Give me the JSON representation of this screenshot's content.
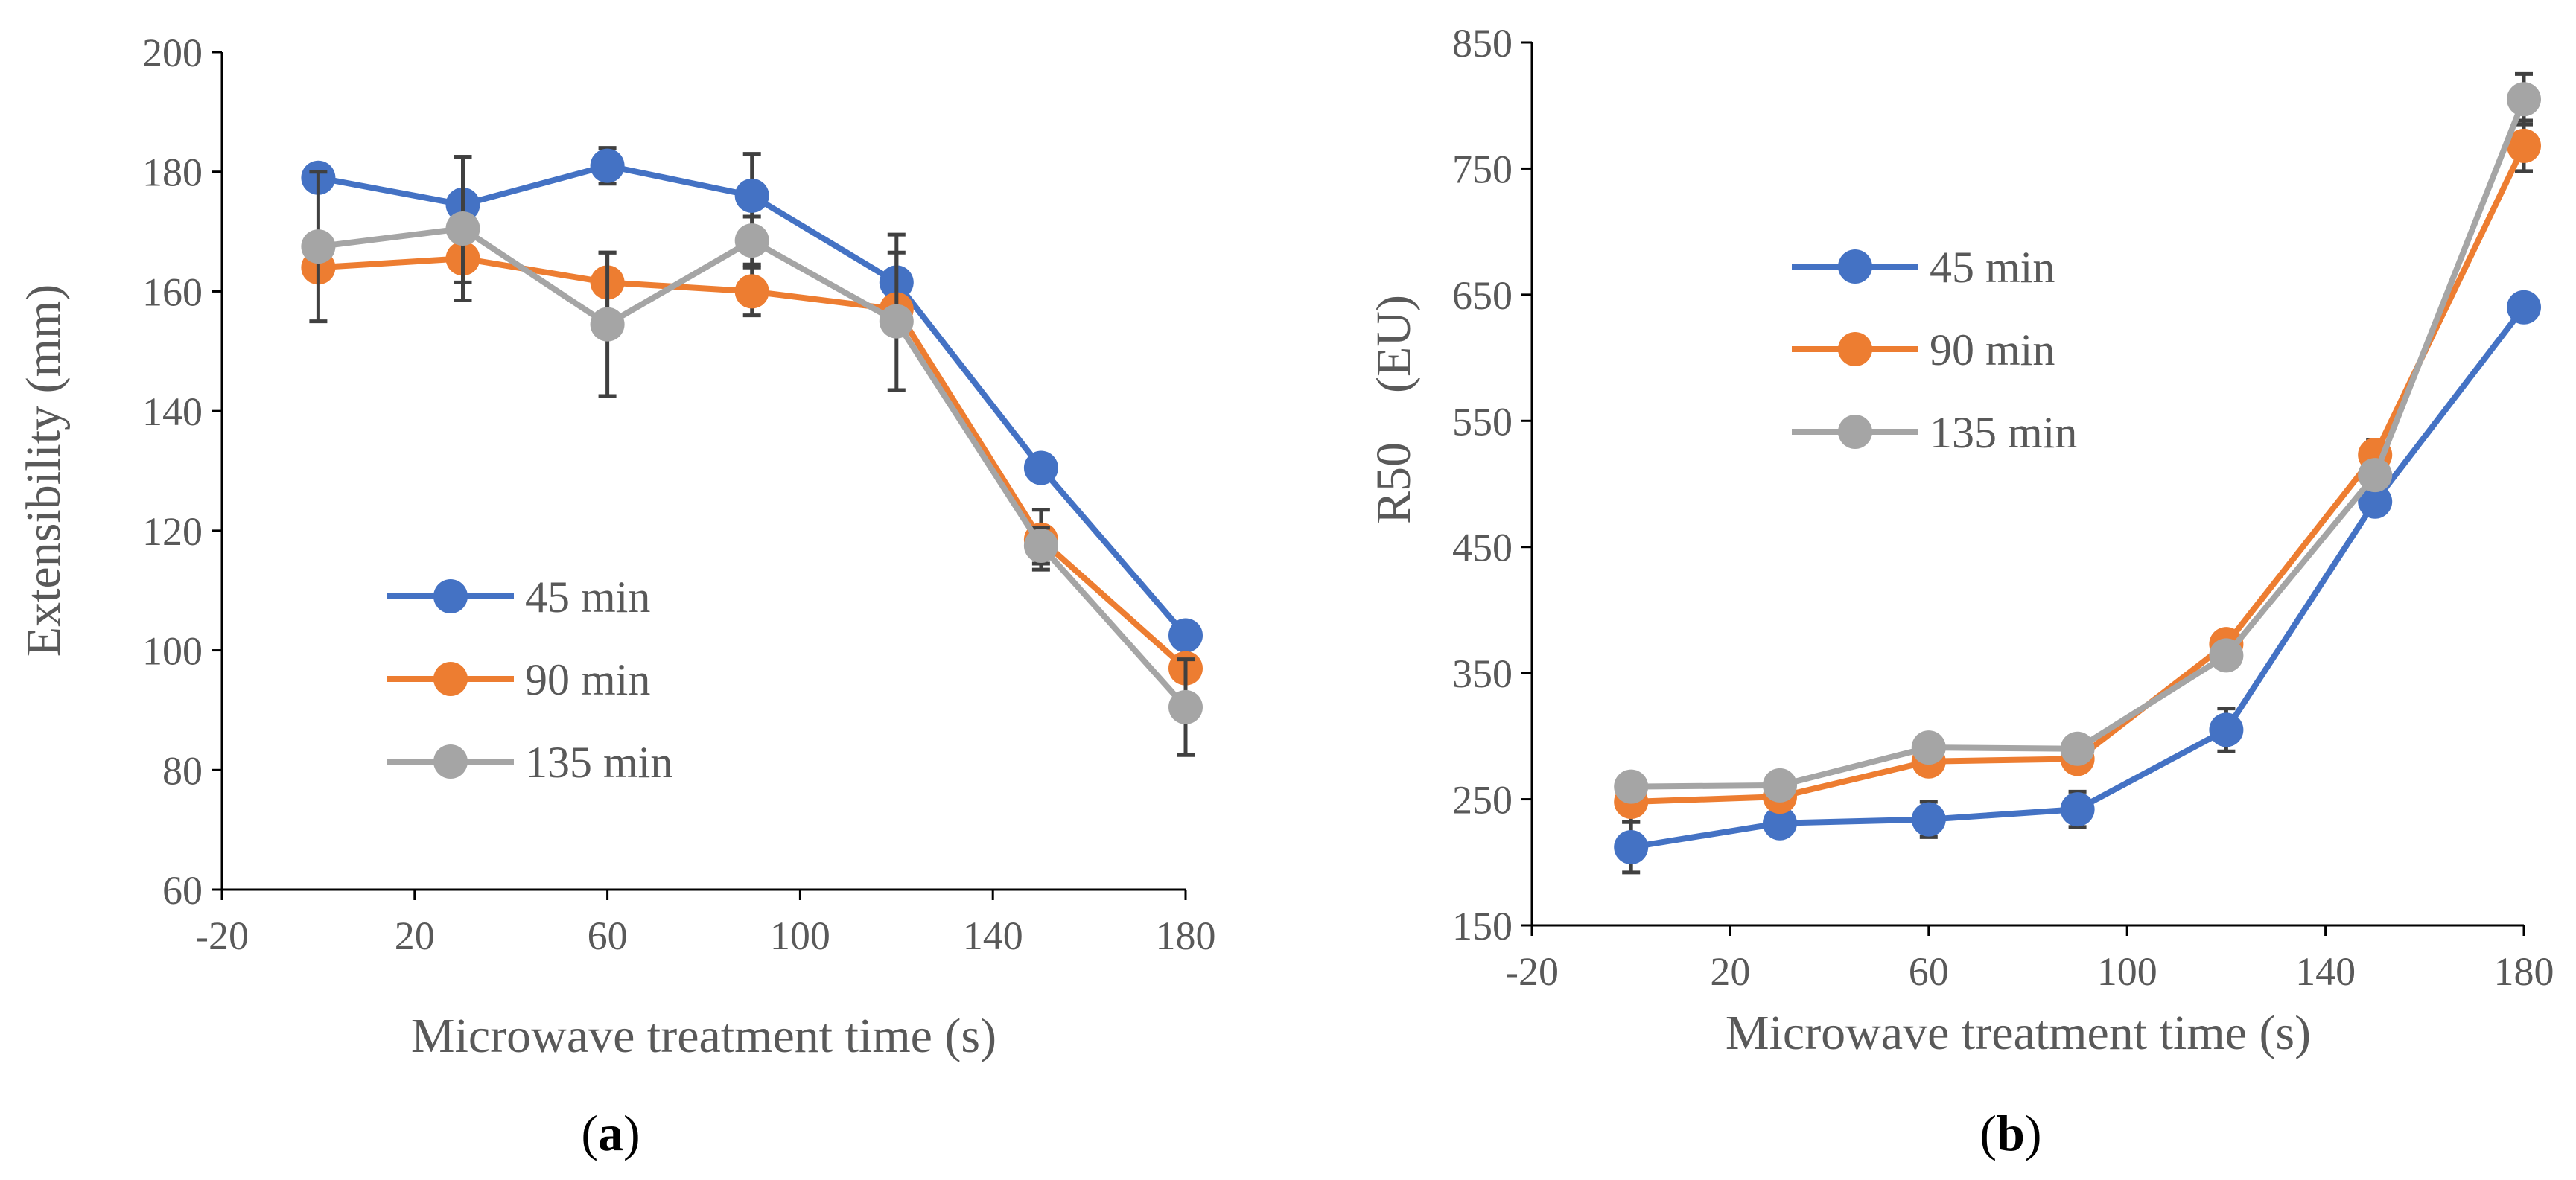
{
  "chart_data": [
    {
      "type": "line",
      "panel_label": "a",
      "xlabel": "Microwave treatment time (s)",
      "ylabel": "Extensibility (mm)",
      "xlim": [
        -20,
        180
      ],
      "ylim": [
        60,
        200
      ],
      "xticks": [
        -20,
        20,
        60,
        100,
        140,
        180
      ],
      "yticks": [
        60,
        80,
        100,
        120,
        140,
        160,
        180,
        200
      ],
      "x": [
        0,
        30,
        60,
        90,
        120,
        150,
        180
      ],
      "legend_position": "center-left",
      "series": [
        {
          "name": "45 min",
          "color": "#4472C4",
          "values": [
            179,
            174.5,
            181,
            176,
            161.5,
            130.5,
            102.5
          ],
          "errors": [
            1.5,
            8,
            3,
            7,
            8,
            2,
            1.5
          ]
        },
        {
          "name": "90 min",
          "color": "#ED7D31",
          "values": [
            164,
            165.5,
            161.5,
            160,
            157,
            118.5,
            97
          ],
          "errors": [
            2,
            4,
            5,
            4,
            2,
            5,
            1.5
          ]
        },
        {
          "name": "135 min",
          "color": "#A5A5A5",
          "values": [
            167.5,
            170.5,
            154.5,
            168.5,
            155,
            117.5,
            90.5
          ],
          "errors": [
            12.5,
            12,
            12,
            4,
            11.5,
            3,
            8
          ]
        }
      ]
    },
    {
      "type": "line",
      "panel_label": "b",
      "xlabel": "Microwave treatment time (s)",
      "ylabel": "R50　(EU)",
      "xlim": [
        -20,
        180
      ],
      "ylim": [
        150,
        850
      ],
      "xticks": [
        -20,
        20,
        60,
        100,
        140,
        180
      ],
      "yticks": [
        150,
        250,
        350,
        450,
        550,
        650,
        750,
        850
      ],
      "x": [
        0,
        30,
        60,
        90,
        120,
        150,
        180
      ],
      "legend_position": "top-left",
      "series": [
        {
          "name": "45 min",
          "color": "#4472C4",
          "values": [
            212,
            231,
            234,
            242,
            305,
            486,
            640
          ],
          "errors": [
            20,
            5,
            14,
            14,
            17,
            8,
            5
          ]
        },
        {
          "name": "90 min",
          "color": "#ED7D31",
          "values": [
            248,
            252,
            280,
            282,
            373,
            523,
            768
          ],
          "errors": [
            16,
            6,
            10,
            10,
            7,
            12,
            20
          ]
        },
        {
          "name": "135 min",
          "color": "#A5A5A5",
          "values": [
            260,
            261,
            291,
            290,
            364,
            507,
            805
          ],
          "errors": [
            5,
            5,
            5,
            8,
            6,
            10,
            20
          ]
        }
      ]
    }
  ]
}
